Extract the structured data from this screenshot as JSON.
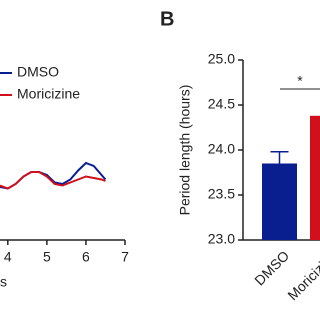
{
  "chart_data": [
    {
      "type": "line",
      "x_label": "s",
      "x": [
        3.8,
        4.0,
        4.2,
        4.4,
        4.6,
        4.8,
        5.0,
        5.2,
        5.4,
        5.6,
        5.8,
        6.0,
        6.2,
        6.4,
        6.5
      ],
      "series": [
        {
          "name": "DMSO",
          "color": "#0a1f8f",
          "values": [
            -0.4,
            -0.45,
            -0.3,
            -0.05,
            0.1,
            0.1,
            0.0,
            -0.25,
            -0.3,
            -0.15,
            0.15,
            0.4,
            0.3,
            0.0,
            -0.15
          ]
        },
        {
          "name": "Moricizine",
          "color": "#d0101c",
          "values": [
            -0.35,
            -0.45,
            -0.3,
            -0.05,
            0.1,
            0.1,
            -0.05,
            -0.3,
            -0.35,
            -0.25,
            -0.15,
            -0.05,
            -0.1,
            -0.15,
            -0.2
          ]
        }
      ],
      "xlim": [
        3.8,
        7
      ],
      "xticks": [
        4,
        5,
        6,
        7
      ],
      "ylim": [
        -1,
        1
      ]
    },
    {
      "type": "bar",
      "panel_label": "B",
      "y_label": "Period length (hours)",
      "categories": [
        "DMSO",
        "Moricizine"
      ],
      "values": [
        23.85,
        24.38
      ],
      "errors": [
        0.13,
        null
      ],
      "colors": [
        "#0a1f8f",
        "#d0101c"
      ],
      "significance": "*",
      "ylim": [
        23,
        25
      ],
      "yticks": [
        {
          "value": 23,
          "label": "23.0"
        },
        {
          "value": 23.5,
          "label": "23.5"
        },
        {
          "value": 24,
          "label": "24.0"
        },
        {
          "value": 24.5,
          "label": "24.5"
        },
        {
          "value": 25,
          "label": "25.0"
        }
      ]
    }
  ]
}
